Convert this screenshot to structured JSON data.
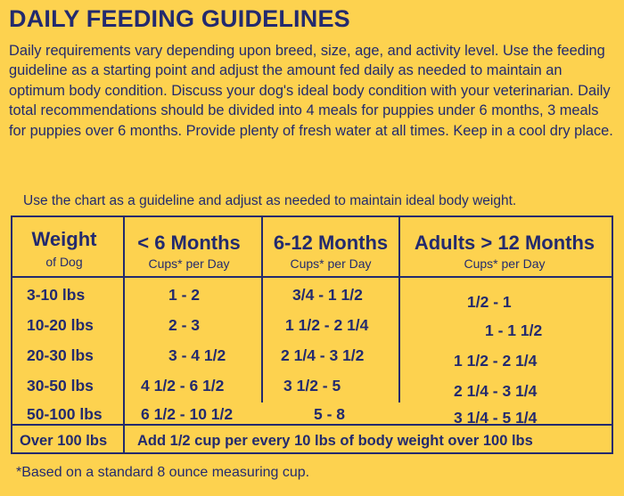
{
  "title": "DAILY FEEDING GUIDELINES",
  "intro": "Daily requirements vary depending upon breed, size, age, and activity level. Use the feeding guideline as a starting point and adjust the amount fed daily as needed to maintain an optimum body condition. Discuss your dog's ideal body condition with your veterinarian. Daily total recommendations should be divided into 4 meals for puppies under 6 months, 3 meals for puppies over 6 months. Provide plenty of fresh water at all times. Keep in a cool dry place.",
  "chart_note": "Use the chart as a guideline and adjust as needed to maintain ideal body weight.",
  "table": {
    "headers": [
      {
        "main": "Weight",
        "sub": "of Dog"
      },
      {
        "main": "< 6 Months",
        "sub": "Cups* per Day"
      },
      {
        "main": "6-12 Months",
        "sub": "Cups* per Day"
      },
      {
        "main": "Adults > 12 Months",
        "sub": "Cups* per Day"
      }
    ],
    "rows": [
      [
        "3-10 lbs",
        "1 - 2",
        "3/4 - 1 1/2",
        "1/2 - 1"
      ],
      [
        "10-20 lbs",
        "2 - 3",
        "1 1/2 - 2 1/4",
        "1 - 1 1/2"
      ],
      [
        "20-30 lbs",
        "3 - 4 1/2",
        "2 1/4 - 3 1/2",
        "1 1/2 - 2 1/4"
      ],
      [
        "30-50 lbs",
        "4 1/2 - 6 1/2",
        "3 1/2 - 5",
        "2 1/4 - 3 1/4"
      ],
      [
        "50-100 lbs",
        "6 1/2 - 10 1/2",
        "5 - 8",
        "3 1/4 - 5 1/4"
      ]
    ],
    "last_row": {
      "weight": "Over 100 lbs",
      "note": "Add 1/2 cup per every 10 lbs of body weight over 100 lbs"
    }
  },
  "footnote": "*Based on a standard 8 ounce measuring cup.",
  "colors": {
    "background": "#fdd24f",
    "text": "#232a6e"
  }
}
